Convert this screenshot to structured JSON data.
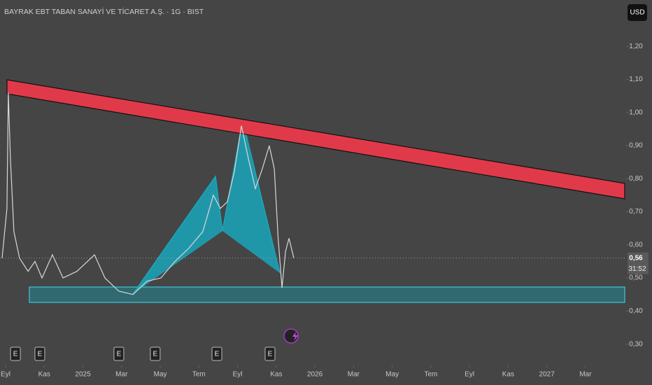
{
  "chart_data": {
    "type": "line",
    "title": "BAYRAK EBT TABAN SANAYİ VE TİCARET A.Ş. · 1G · BIST",
    "currency": "USD",
    "color": "#d8d8d8",
    "x": [
      -0.18,
      0.07,
      0.14,
      0.25,
      0.43,
      0.72,
      1.16,
      1.52,
      1.88,
      2.42,
      2.97,
      3.69,
      4.6,
      5.14,
      5.86,
      6.59,
      7.31,
      8.03,
      8.76,
      9.48,
      10.2,
      10.75,
      11.11,
      11.47,
      11.83,
      12.2,
      12.56,
      12.92,
      13.28,
      13.64,
      13.9,
      14.1,
      14.3,
      14.48,
      14.66,
      14.91
    ],
    "values": [
      0.56,
      0.71,
      1.06,
      0.86,
      0.64,
      0.56,
      0.52,
      0.55,
      0.5,
      0.57,
      0.5,
      0.52,
      0.57,
      0.5,
      0.46,
      0.45,
      0.49,
      0.5,
      0.55,
      0.59,
      0.64,
      0.75,
      0.71,
      0.73,
      0.82,
      0.96,
      0.86,
      0.77,
      0.83,
      0.9,
      0.83,
      0.62,
      0.47,
      0.58,
      0.62,
      0.56
    ],
    "xlim": [
      -0.29,
      31.92
    ],
    "ylim": [
      0.24,
      1.34
    ],
    "xticks": [
      {
        "value": 0,
        "label": "Eyl"
      },
      {
        "value": 2,
        "label": "Kas"
      },
      {
        "value": 4,
        "label": "2025"
      },
      {
        "value": 6,
        "label": "Mar"
      },
      {
        "value": 8,
        "label": "May"
      },
      {
        "value": 10,
        "label": "Tem"
      },
      {
        "value": 12,
        "label": "Eyl"
      },
      {
        "value": 14,
        "label": "Kas"
      },
      {
        "value": 16,
        "label": "2026"
      },
      {
        "value": 18,
        "label": "Mar"
      },
      {
        "value": 20,
        "label": "May"
      },
      {
        "value": 22,
        "label": "Tem"
      },
      {
        "value": 24,
        "label": "Eyl"
      },
      {
        "value": 26,
        "label": "Kas"
      },
      {
        "value": 28,
        "label": "2027"
      },
      {
        "value": 30,
        "label": "Mar"
      }
    ],
    "yticks": [
      {
        "value": 0.3,
        "label": "0,30"
      },
      {
        "value": 0.4,
        "label": "0,40"
      },
      {
        "value": 0.5,
        "label": "0,50"
      },
      {
        "value": 0.6,
        "label": "0,60"
      },
      {
        "value": 0.7,
        "label": "0,70"
      },
      {
        "value": 0.8,
        "label": "0,80"
      },
      {
        "value": 0.9,
        "label": "0,90"
      },
      {
        "value": 1.0,
        "label": "1,00"
      },
      {
        "value": 1.1,
        "label": "1,10"
      },
      {
        "value": 1.2,
        "label": "1,20"
      }
    ],
    "last_price": {
      "value": 0.56,
      "label": "0,56"
    },
    "countdown": "31:52",
    "events": [
      {
        "x": 0.51,
        "label": "E"
      },
      {
        "x": 1.77,
        "label": "E"
      },
      {
        "x": 5.86,
        "label": "E"
      },
      {
        "x": 7.74,
        "label": "E"
      },
      {
        "x": 10.93,
        "label": "E"
      },
      {
        "x": 13.68,
        "label": "E"
      }
    ]
  }
}
